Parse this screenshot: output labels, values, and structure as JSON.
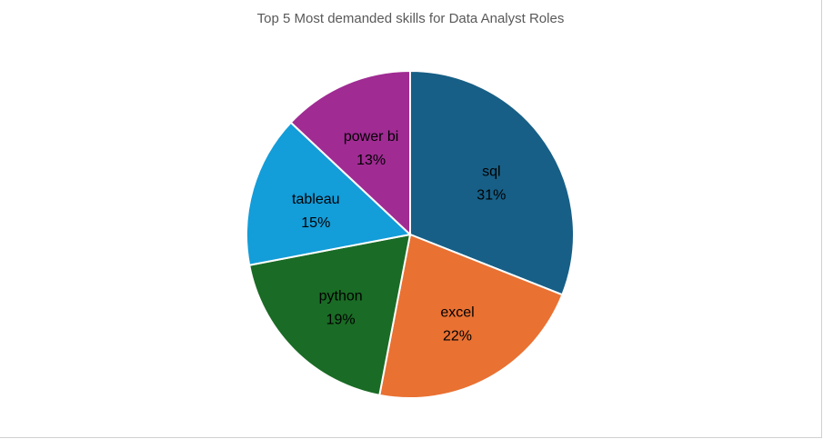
{
  "chart_data": {
    "type": "pie",
    "title": "Top 5 Most demanded skills for Data Analyst Roles",
    "categories": [
      "sql",
      "excel",
      "python",
      "tableau",
      "power bi"
    ],
    "values": [
      31,
      22,
      19,
      15,
      13
    ],
    "percent_labels": [
      "31%",
      "22%",
      "19%",
      "15%",
      "13%"
    ],
    "colors": [
      "#175f86",
      "#e97132",
      "#1a6b25",
      "#139dd9",
      "#a02b93"
    ],
    "legend": "none",
    "start_angle_deg": 0,
    "direction": "clockwise"
  }
}
